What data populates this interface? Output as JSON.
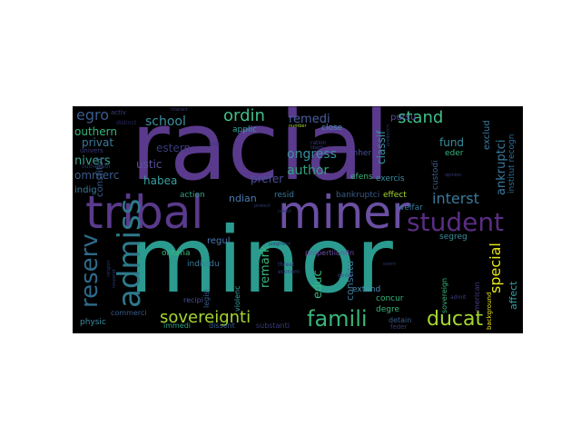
{
  "colors": {
    "background": "#000000",
    "page": "#ffffff",
    "teal": "#2b9b8f",
    "purple": "#5a3a8c",
    "indigo": "#3d4f8c",
    "green": "#38b57a",
    "lime": "#a6d630",
    "yellow": "#e6e619",
    "blue": "#2c6e9c"
  },
  "words": [
    {
      "text": "minor",
      "color": "#2b9b8f",
      "weight": 1.0
    },
    {
      "text": "racial",
      "color": "#5a3a8c",
      "weight": 0.92
    },
    {
      "text": "tribal",
      "color": "#5a3a8c",
      "weight": 0.6
    },
    {
      "text": "miner",
      "color": "#6a4fa3",
      "weight": 0.6
    },
    {
      "text": "admiss",
      "color": "#2e7a8c",
      "weight": 0.45
    },
    {
      "text": "student",
      "color": "#5a2d82",
      "weight": 0.35
    },
    {
      "text": "reserv",
      "color": "#2e6a8c",
      "weight": 0.35
    },
    {
      "text": "famili",
      "color": "#38b57a",
      "weight": 0.3
    },
    {
      "text": "ducat",
      "color": "#a6d630",
      "weight": 0.3
    },
    {
      "text": "sovereignti",
      "color": "#a6d630",
      "weight": 0.22
    },
    {
      "text": "ordin",
      "color": "#3fbf8a",
      "weight": 0.22
    },
    {
      "text": "stand",
      "color": "#3fbf8a",
      "weight": 0.22
    },
    {
      "text": "egro",
      "color": "#3a5c8c",
      "weight": 0.2
    },
    {
      "text": "interst",
      "color": "#3a7a9c",
      "weight": 0.2
    },
    {
      "text": "special",
      "color": "#e6e619",
      "weight": 0.2
    },
    {
      "text": "school",
      "color": "#3a8fa0",
      "weight": 0.18
    },
    {
      "text": "remedi",
      "color": "#4a5ea0",
      "weight": 0.16
    },
    {
      "text": "ongress",
      "color": "#3a8fa0",
      "weight": 0.16
    },
    {
      "text": "author",
      "color": "#30a080",
      "weight": 0.16
    },
    {
      "text": "nivers",
      "color": "#3aa090",
      "weight": 0.15
    },
    {
      "text": "remark",
      "color": "#38b57a",
      "weight": 0.15
    },
    {
      "text": "educ",
      "color": "#38b57a",
      "weight": 0.15
    },
    {
      "text": "ankruptci",
      "color": "#3a7a9c",
      "weight": 0.15
    },
    {
      "text": "outhern",
      "color": "#38b57a",
      "weight": 0.13
    },
    {
      "text": "privat",
      "color": "#3a7a9c",
      "weight": 0.13
    },
    {
      "text": "ommerc",
      "color": "#3a5c8c",
      "weight": 0.13
    },
    {
      "text": "ustic",
      "color": "#5a4fa0",
      "weight": 0.13
    },
    {
      "text": "habea",
      "color": "#38a0a0",
      "weight": 0.13
    },
    {
      "text": "prefer",
      "color": "#4a4f9c",
      "weight": 0.13
    },
    {
      "text": "estern",
      "color": "#3a3a80",
      "weight": 0.13
    },
    {
      "text": "fund",
      "color": "#3a8fa0",
      "weight": 0.12
    },
    {
      "text": "classif",
      "color": "#3a8fa0",
      "weight": 0.12
    },
    {
      "text": "ndian",
      "color": "#4a7ab0",
      "weight": 0.12
    },
    {
      "text": "indig",
      "color": "#3a7a9c",
      "weight": 0.1
    },
    {
      "text": "constitut",
      "color": "#3a5c8c",
      "weight": 0.1
    },
    {
      "text": "constitu",
      "color": "#3a7a9c",
      "weight": 0.11
    },
    {
      "text": "affect",
      "color": "#30a0a0",
      "weight": 0.12
    },
    {
      "text": "pursu",
      "color": "#5a4fa0",
      "weight": 0.11
    },
    {
      "text": "exclud",
      "color": "#3a7a9c",
      "weight": 0.1
    },
    {
      "text": "institut recogn",
      "color": "#2c6e9c",
      "weight": 0.09
    },
    {
      "text": "custodi",
      "color": "#3a5c8c",
      "weight": 0.09
    },
    {
      "text": "eder",
      "color": "#38b57a",
      "weight": 0.08
    },
    {
      "text": "efens",
      "color": "#38b57a",
      "weight": 0.08
    },
    {
      "text": "exercis",
      "color": "#3a8fa0",
      "weight": 0.08
    },
    {
      "text": "inher",
      "color": "#4a4f9c",
      "weight": 0.08
    },
    {
      "text": "close",
      "color": "#4a8fb0",
      "weight": 0.08
    },
    {
      "text": "applic",
      "color": "#38a0a0",
      "weight": 0.08
    },
    {
      "text": "action",
      "color": "#30a080",
      "weight": 0.08
    },
    {
      "text": "resid",
      "color": "#3a7a9c",
      "weight": 0.08
    },
    {
      "text": "regul",
      "color": "#4a7ab0",
      "weight": 0.09
    },
    {
      "text": "individu",
      "color": "#3a7a9c",
      "weight": 0.08
    },
    {
      "text": "ontana",
      "color": "#38b57a",
      "weight": 0.08
    },
    {
      "text": "bankruptci",
      "color": "#3a5c8c",
      "weight": 0.08
    },
    {
      "text": "effect",
      "color": "#a6d630",
      "weight": 0.08
    },
    {
      "text": "segreg",
      "color": "#3a8fa0",
      "weight": 0.08
    },
    {
      "text": "welfar",
      "color": "#3a7a9c",
      "weight": 0.08
    },
    {
      "text": "extend",
      "color": "#4a8fb0",
      "weight": 0.08
    },
    {
      "text": "concur",
      "color": "#38b57a",
      "weight": 0.08
    },
    {
      "text": "degre",
      "color": "#38b57a",
      "weight": 0.08
    },
    {
      "text": "detain",
      "color": "#3a5c8c",
      "weight": 0.07
    },
    {
      "text": "sovereign",
      "color": "#38b57a",
      "weight": 0.07
    },
    {
      "text": "merican",
      "color": "#4a3a80",
      "weight": 0.07
    },
    {
      "text": "propertiionfin",
      "color": "#6a4fa3",
      "weight": 0.07
    },
    {
      "text": "physic",
      "color": "#3a8fa0",
      "weight": 0.08
    },
    {
      "text": "recipi",
      "color": "#4a4f9c",
      "weight": 0.07
    },
    {
      "text": "legisl",
      "color": "#3a5c8c",
      "weight": 0.07
    },
    {
      "text": "violenc",
      "color": "#38a0a0",
      "weight": 0.07
    },
    {
      "text": "commerci",
      "color": "#3a5c8c",
      "weight": 0.07
    },
    {
      "text": "immedi",
      "color": "#30a080",
      "weight": 0.07
    },
    {
      "text": "dissent",
      "color": "#3a5c8c",
      "weight": 0.07
    },
    {
      "text": "substanti",
      "color": "#3a3a80",
      "weight": 0.07
    },
    {
      "text": "feder",
      "color": "#3a3a70",
      "weight": 0.06
    },
    {
      "text": "background",
      "color": "#e6e619",
      "weight": 0.06
    },
    {
      "text": "admit",
      "color": "#3a3a80",
      "weight": 0.05
    },
    {
      "text": "activ",
      "color": "#3a3a80",
      "weight": 0.06
    },
    {
      "text": "univers",
      "color": "#3a3a80",
      "weight": 0.06
    },
    {
      "text": "distinct",
      "color": "#2a2a60",
      "weight": 0.05
    },
    {
      "text": "outhwesth",
      "color": "#2a3a70",
      "weight": 0.05
    },
    {
      "text": "charact",
      "color": "#3a3a80",
      "weight": 0.04
    },
    {
      "text": "singl",
      "color": "#3a3a80",
      "weight": 0.04
    },
    {
      "text": "number",
      "color": "#a6d630",
      "weight": 0.04
    },
    {
      "text": "ration",
      "color": "#3a3a80",
      "weight": 0.05
    },
    {
      "text": "liberti",
      "color": "#3a3a80",
      "weight": 0.04
    },
    {
      "text": "predomin",
      "color": "#2a3a70",
      "weight": 0.04
    },
    {
      "text": "opinion",
      "color": "#3a3a80",
      "weight": 0.04
    },
    {
      "text": "threat",
      "color": "#3a3a80",
      "weight": 0.05
    },
    {
      "text": "econom",
      "color": "#3a3a80",
      "weight": 0.05
    },
    {
      "text": "gener",
      "color": "#4a4f9c",
      "weight": 0.05
    },
    {
      "text": "overn",
      "color": "#2a3a70",
      "weight": 0.04
    },
    {
      "text": "religion",
      "color": "#2a3a70",
      "weight": 0.04
    },
    {
      "text": "respond",
      "color": "#2a3a70",
      "weight": 0.04
    },
    {
      "text": "judgment",
      "color": "#2a3a70",
      "weight": 0.04
    },
    {
      "text": "protect",
      "color": "#2a3a70",
      "weight": 0.04
    },
    {
      "text": "colect",
      "color": "#2a3a70",
      "weight": 0.04
    }
  ]
}
